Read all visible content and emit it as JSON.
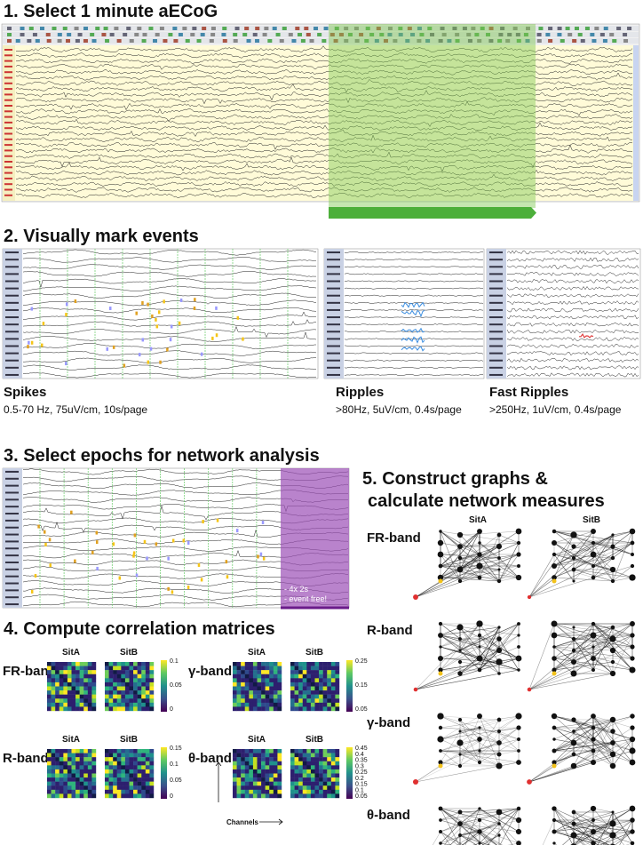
{
  "step1": {
    "title": "1. Select 1 minute aECoG"
  },
  "step2": {
    "title": "2. Visually mark events",
    "panels": [
      {
        "label": "Spikes",
        "detail": "0.5-70 Hz, 75uV/cm, 10s/page"
      },
      {
        "label": "Ripples",
        "detail": ">80Hz, 5uV/cm, 0.4s/page"
      },
      {
        "label": "Fast Ripples",
        "detail": ">250Hz, 1uV/cm, 0.4s/page"
      }
    ]
  },
  "step3": {
    "title": "3. Select epochs for network analysis",
    "note": [
      "- 4x 2s",
      "- event free!"
    ]
  },
  "step4": {
    "title": "4. Compute correlation matrices",
    "conditions": [
      "SitA",
      "SitB"
    ],
    "axis_label": "Channels",
    "bands": [
      {
        "name": "FR-band",
        "colorbar": [
          "0.1",
          "0.05",
          "0"
        ]
      },
      {
        "name": "γ-band",
        "colorbar": [
          "0.25",
          "0.15",
          "0.05"
        ]
      },
      {
        "name": "R-band",
        "colorbar": [
          "0.15",
          "0.1",
          "0.05",
          "0"
        ]
      },
      {
        "name": "θ-band",
        "colorbar": [
          "0.45",
          "0.4",
          "0.35",
          "0.3",
          "0.25",
          "0.2",
          "0.15",
          "0.1",
          "0.05"
        ]
      }
    ]
  },
  "step5": {
    "title": [
      "5. Construct graphs &",
      "calculate network measures"
    ],
    "conditions": [
      "SitA",
      "SitB"
    ],
    "bands": [
      "FR-band",
      "R-band",
      "γ-band",
      "θ-band"
    ]
  }
}
